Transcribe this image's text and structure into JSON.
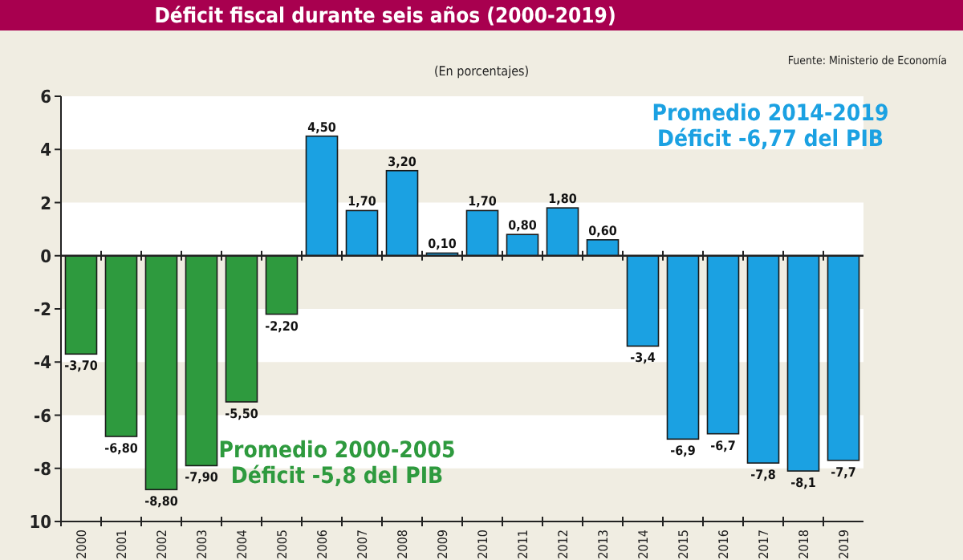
{
  "chart_data": {
    "type": "bar",
    "title": "Déficit fiscal durante seis años (2000-2019)",
    "categories": [
      "2000",
      "2001",
      "2002",
      "2003",
      "2004",
      "2005",
      "2006",
      "2007",
      "2008",
      "2009",
      "2010",
      "2011",
      "2012",
      "2013",
      "2014",
      "2015",
      "2016",
      "2017",
      "2018",
      "2019"
    ],
    "values": [
      -3.7,
      -6.8,
      -8.8,
      -7.9,
      -5.5,
      -2.2,
      4.5,
      1.7,
      3.2,
      0.1,
      1.7,
      0.8,
      1.8,
      0.6,
      -3.4,
      -6.9,
      -6.7,
      -7.8,
      -8.1,
      -7.7
    ],
    "colors": [
      "#2e9a3e",
      "#2e9a3e",
      "#2e9a3e",
      "#2e9a3e",
      "#2e9a3e",
      "#2e9a3e",
      "#1ba1e2",
      "#1ba1e2",
      "#1ba1e2",
      "#1ba1e2",
      "#1ba1e2",
      "#1ba1e2",
      "#1ba1e2",
      "#1ba1e2",
      "#1ba1e2",
      "#1ba1e2",
      "#1ba1e2",
      "#1ba1e2",
      "#1ba1e2",
      "#1ba1e2"
    ],
    "value_labels": [
      "-3,70",
      "-6,80",
      "-8,80",
      "-7,90",
      "-5,50",
      "-2,20",
      "4,50",
      "1,70",
      "3,20",
      "0,10",
      "1,70",
      "0,80",
      "1,80",
      "0,60",
      "-3,4",
      "-6,9",
      "-6,7",
      "-7,8",
      "-8,1",
      "-7,7"
    ],
    "ylim": [
      -10,
      6
    ],
    "yticks": [
      6,
      4,
      2,
      0,
      -2,
      -4,
      -6,
      -8,
      {
        "value": -10,
        "label": "10"
      }
    ],
    "grid": "y",
    "annotations": [
      "(En porcentajes)",
      "Fuente: Ministerio de Economía",
      "Promedio 2000-2005\nDéficit -5,8 del PIB",
      "Promedio 2014-2019\nDéficit -6,77 del PIB"
    ]
  }
}
